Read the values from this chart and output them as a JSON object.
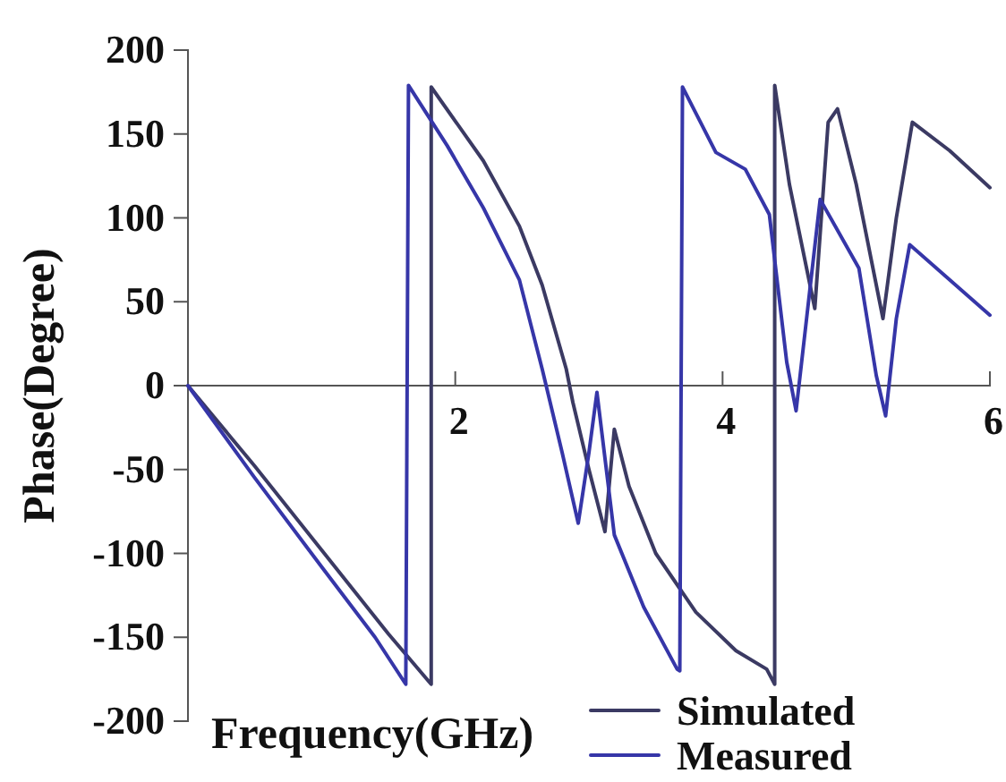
{
  "chart_data": {
    "type": "line",
    "xlabel": "Frequency(GHz)",
    "ylabel": "Phase(Degree)",
    "xlim": [
      0,
      6
    ],
    "ylim": [
      -200,
      200
    ],
    "xticks": [
      2,
      4,
      6
    ],
    "yticks": [
      -200,
      -150,
      -100,
      -50,
      0,
      50,
      100,
      150,
      200
    ],
    "legend": "bottom right",
    "grid": false,
    "series": [
      {
        "name": "Simulated",
        "color": "#3b3a63",
        "x": [
          0,
          0.5,
          1.0,
          1.5,
          1.82,
          1.82,
          2.21,
          2.48,
          2.65,
          2.83,
          2.88,
          3.0,
          3.12,
          3.19,
          3.3,
          3.5,
          3.8,
          4.1,
          4.33,
          4.39,
          4.39,
          4.5,
          4.69,
          4.79,
          4.86,
          5.0,
          5.2,
          5.3,
          5.42,
          5.7,
          6.0
        ],
        "values": [
          0,
          -48,
          -98,
          -148,
          -178,
          178,
          134,
          95,
          60,
          10,
          -10,
          -50,
          -87,
          -26,
          -60,
          -100,
          -135,
          -158,
          -169,
          -178,
          179,
          120,
          46,
          157,
          165,
          120,
          40,
          100,
          157,
          140,
          118
        ]
      },
      {
        "name": "Measured",
        "color": "#3636a8",
        "x": [
          0,
          0.5,
          1.0,
          1.4,
          1.63,
          1.65,
          1.94,
          2.21,
          2.48,
          2.65,
          2.8,
          2.92,
          3.0,
          3.06,
          3.19,
          3.41,
          3.66,
          3.68,
          3.7,
          3.95,
          4.17,
          4.35,
          4.48,
          4.55,
          4.73,
          5.02,
          5.15,
          5.22,
          5.3,
          5.4,
          6.0
        ],
        "values": [
          0,
          -55,
          -108,
          -150,
          -178,
          179,
          143,
          106,
          63,
          10,
          -40,
          -82,
          -40,
          -4,
          -89,
          -132,
          -169,
          -170,
          178,
          139,
          129,
          102,
          14,
          -15,
          111,
          70,
          6,
          -18,
          40,
          84,
          42
        ]
      }
    ]
  }
}
